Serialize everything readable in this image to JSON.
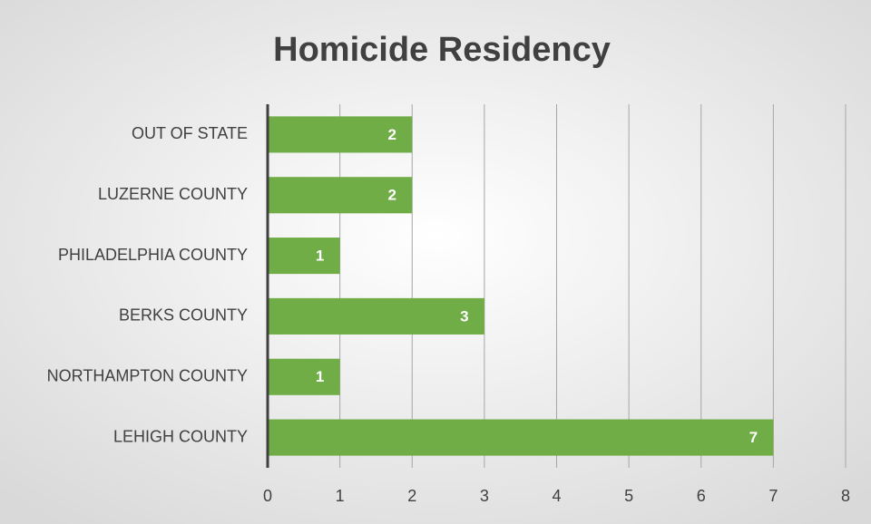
{
  "chart_data": {
    "type": "bar",
    "orientation": "horizontal",
    "title": "Homicide Residency",
    "categories": [
      "OUT OF STATE",
      "LUZERNE COUNTY",
      "PHILADELPHIA COUNTY",
      "BERKS COUNTY",
      "NORTHAMPTON COUNTY",
      "LEHIGH COUNTY"
    ],
    "values": [
      2,
      2,
      1,
      3,
      1,
      7
    ],
    "color": "#70ad47",
    "xlim": [
      0,
      8
    ],
    "xticks": [
      0,
      1,
      2,
      3,
      4,
      5,
      6,
      7,
      8
    ],
    "grid": true
  }
}
